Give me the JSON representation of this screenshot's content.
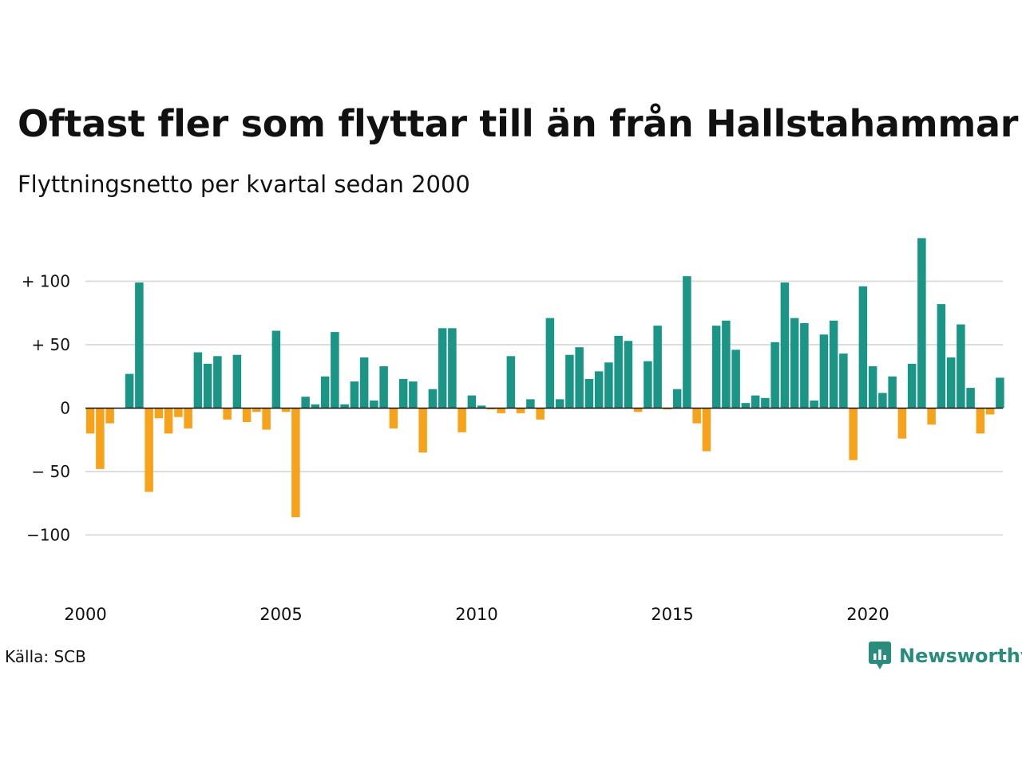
{
  "title": "Oftast fler som flyttar till än från Hallstahammar",
  "subtitle": "Flyttningsnetto per kvartal sedan 2000",
  "source": "Källa: SCB",
  "logo": {
    "name": "newsworthy-logo-icon",
    "text": "Newsworthy"
  },
  "colors": {
    "positive": "#1b9585",
    "negative": "#f7a21b",
    "grid": "#dddddd",
    "axis": "#111111"
  },
  "chart_data": {
    "type": "bar",
    "x_unit": "quarter",
    "start": "2000 Q1",
    "x_tick_labels": [
      "2000",
      "2005",
      "2010",
      "2015",
      "2020"
    ],
    "y_ticks": [
      {
        "value": 100,
        "label": "+ 100"
      },
      {
        "value": 50,
        "label": "+  50"
      },
      {
        "value": 0,
        "label": "0"
      },
      {
        "value": -50,
        "label": "− 50"
      },
      {
        "value": -100,
        "label": "−100"
      }
    ],
    "ylim": [
      -140,
      140
    ],
    "grid": true,
    "legend": "none",
    "values": [
      -20,
      -48,
      -12,
      0,
      27,
      99,
      -66,
      -8,
      -20,
      -7,
      -16,
      44,
      35,
      41,
      -9,
      42,
      -11,
      -3,
      -17,
      61,
      -3,
      -86,
      9,
      3,
      25,
      60,
      3,
      21,
      40,
      6,
      33,
      -16,
      23,
      21,
      -35,
      15,
      63,
      63,
      -19,
      10,
      2,
      -1,
      -4,
      41,
      -4,
      7,
      -9,
      71,
      7,
      42,
      48,
      23,
      29,
      36,
      57,
      53,
      -3,
      37,
      65,
      -1,
      15,
      104,
      -12,
      -34,
      65,
      69,
      46,
      4,
      10,
      8,
      52,
      99,
      71,
      67,
      6,
      58,
      69,
      43,
      -41,
      96,
      33,
      12,
      25,
      -24,
      35,
      134,
      -13,
      82,
      40,
      66,
      16,
      -20,
      -5,
      24
    ]
  }
}
